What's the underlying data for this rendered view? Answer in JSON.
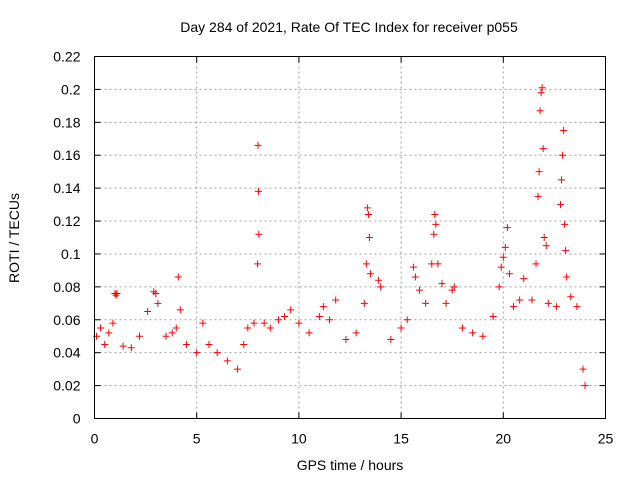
{
  "chart_data": {
    "type": "scatter",
    "title": "Day 284 of 2021, Rate Of TEC Index for receiver p055",
    "xlabel": "GPS time / hours",
    "ylabel": "ROTI / TECUs",
    "xlim": [
      0,
      25
    ],
    "ylim": [
      0,
      0.22
    ],
    "x_ticks": [
      0,
      5,
      10,
      15,
      20,
      25
    ],
    "x_tick_labels": [
      "0",
      "5",
      "10",
      "15",
      "20",
      "25"
    ],
    "y_ticks": [
      0,
      0.02,
      0.04,
      0.06,
      0.08,
      0.1,
      0.12,
      0.14,
      0.16,
      0.18,
      0.2,
      0.22
    ],
    "y_tick_labels": [
      "0",
      "0.02",
      "0.04",
      "0.06",
      "0.08",
      "0.1",
      "0.12",
      "0.14",
      "0.16",
      "0.18",
      "0.2",
      "0.22"
    ],
    "grid": true,
    "marker": "+",
    "marker_color": "#ff0000",
    "series": [
      {
        "name": "ROTI",
        "points": [
          [
            0.1,
            0.05
          ],
          [
            0.3,
            0.055
          ],
          [
            0.5,
            0.045
          ],
          [
            0.7,
            0.052
          ],
          [
            0.9,
            0.058
          ],
          [
            1.0,
            0.076
          ],
          [
            1.05,
            0.075
          ],
          [
            1.1,
            0.076
          ],
          [
            1.4,
            0.044
          ],
          [
            1.8,
            0.043
          ],
          [
            2.2,
            0.05
          ],
          [
            2.6,
            0.065
          ],
          [
            2.9,
            0.077
          ],
          [
            3.0,
            0.076
          ],
          [
            3.1,
            0.07
          ],
          [
            3.5,
            0.05
          ],
          [
            3.8,
            0.052
          ],
          [
            4.0,
            0.055
          ],
          [
            4.1,
            0.086
          ],
          [
            4.2,
            0.066
          ],
          [
            4.5,
            0.045
          ],
          [
            5.0,
            0.04
          ],
          [
            5.3,
            0.058
          ],
          [
            5.6,
            0.045
          ],
          [
            6.0,
            0.04
          ],
          [
            6.5,
            0.035
          ],
          [
            7.0,
            0.03
          ],
          [
            7.3,
            0.045
          ],
          [
            7.5,
            0.055
          ],
          [
            7.8,
            0.058
          ],
          [
            8.0,
            0.166
          ],
          [
            8.02,
            0.138
          ],
          [
            8.04,
            0.112
          ],
          [
            7.98,
            0.094
          ],
          [
            8.3,
            0.058
          ],
          [
            8.6,
            0.055
          ],
          [
            9.0,
            0.06
          ],
          [
            9.3,
            0.062
          ],
          [
            9.6,
            0.066
          ],
          [
            10.0,
            0.058
          ],
          [
            10.5,
            0.052
          ],
          [
            11.0,
            0.062
          ],
          [
            11.2,
            0.068
          ],
          [
            11.5,
            0.06
          ],
          [
            11.8,
            0.072
          ],
          [
            12.3,
            0.048
          ],
          [
            12.8,
            0.052
          ],
          [
            13.2,
            0.07
          ],
          [
            13.3,
            0.094
          ],
          [
            13.35,
            0.128
          ],
          [
            13.4,
            0.124
          ],
          [
            13.45,
            0.11
          ],
          [
            13.5,
            0.088
          ],
          [
            13.9,
            0.084
          ],
          [
            14.0,
            0.08
          ],
          [
            14.5,
            0.048
          ],
          [
            15.0,
            0.055
          ],
          [
            15.3,
            0.06
          ],
          [
            15.6,
            0.092
          ],
          [
            15.7,
            0.086
          ],
          [
            15.9,
            0.078
          ],
          [
            16.2,
            0.07
          ],
          [
            16.5,
            0.094
          ],
          [
            16.6,
            0.112
          ],
          [
            16.65,
            0.124
          ],
          [
            16.7,
            0.118
          ],
          [
            16.8,
            0.094
          ],
          [
            17.0,
            0.082
          ],
          [
            17.2,
            0.07
          ],
          [
            17.5,
            0.078
          ],
          [
            17.6,
            0.08
          ],
          [
            18.0,
            0.055
          ],
          [
            18.5,
            0.052
          ],
          [
            19.0,
            0.05
          ],
          [
            19.5,
            0.062
          ],
          [
            19.8,
            0.08
          ],
          [
            19.9,
            0.092
          ],
          [
            20.0,
            0.098
          ],
          [
            20.1,
            0.104
          ],
          [
            20.2,
            0.116
          ],
          [
            20.3,
            0.088
          ],
          [
            20.5,
            0.068
          ],
          [
            20.8,
            0.072
          ],
          [
            21.0,
            0.085
          ],
          [
            21.4,
            0.072
          ],
          [
            21.6,
            0.094
          ],
          [
            21.7,
            0.135
          ],
          [
            21.75,
            0.15
          ],
          [
            21.8,
            0.187
          ],
          [
            21.85,
            0.198
          ],
          [
            21.9,
            0.201
          ],
          [
            21.95,
            0.164
          ],
          [
            22.0,
            0.11
          ],
          [
            22.1,
            0.105
          ],
          [
            22.2,
            0.07
          ],
          [
            22.6,
            0.068
          ],
          [
            22.8,
            0.13
          ],
          [
            22.85,
            0.145
          ],
          [
            22.9,
            0.16
          ],
          [
            22.95,
            0.175
          ],
          [
            23.0,
            0.118
          ],
          [
            23.05,
            0.102
          ],
          [
            23.1,
            0.086
          ],
          [
            23.3,
            0.074
          ],
          [
            23.6,
            0.068
          ],
          [
            23.9,
            0.03
          ],
          [
            24.0,
            0.02
          ]
        ]
      }
    ]
  }
}
